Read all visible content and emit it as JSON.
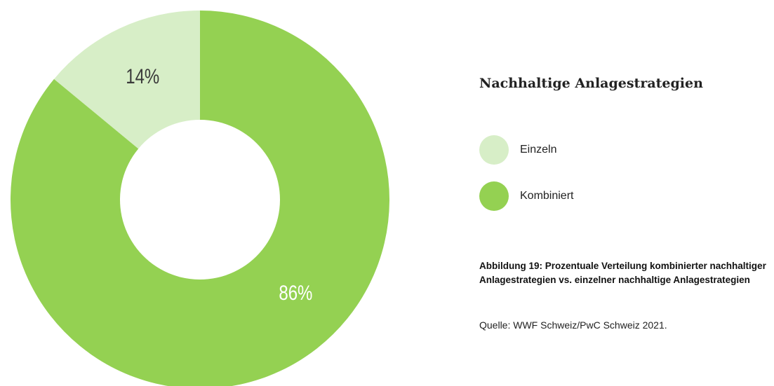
{
  "chart_data": {
    "type": "donut",
    "title": "Nachhaltige Anlagestrategien",
    "categories": [
      "Einzeln",
      "Kombiniert"
    ],
    "values": [
      14,
      86
    ],
    "value_labels": [
      "14%",
      "86%"
    ],
    "colors": [
      "#d7eec7",
      "#94d152"
    ],
    "caption": "Abbildung 19: Prozentuale Verteilung kombinierter nachhaltiger Anlagestrategien vs. einzelner nachhaltige Anlagestrategien",
    "source": "Quelle: WWF Schweiz/PwC Schweiz 2021."
  }
}
